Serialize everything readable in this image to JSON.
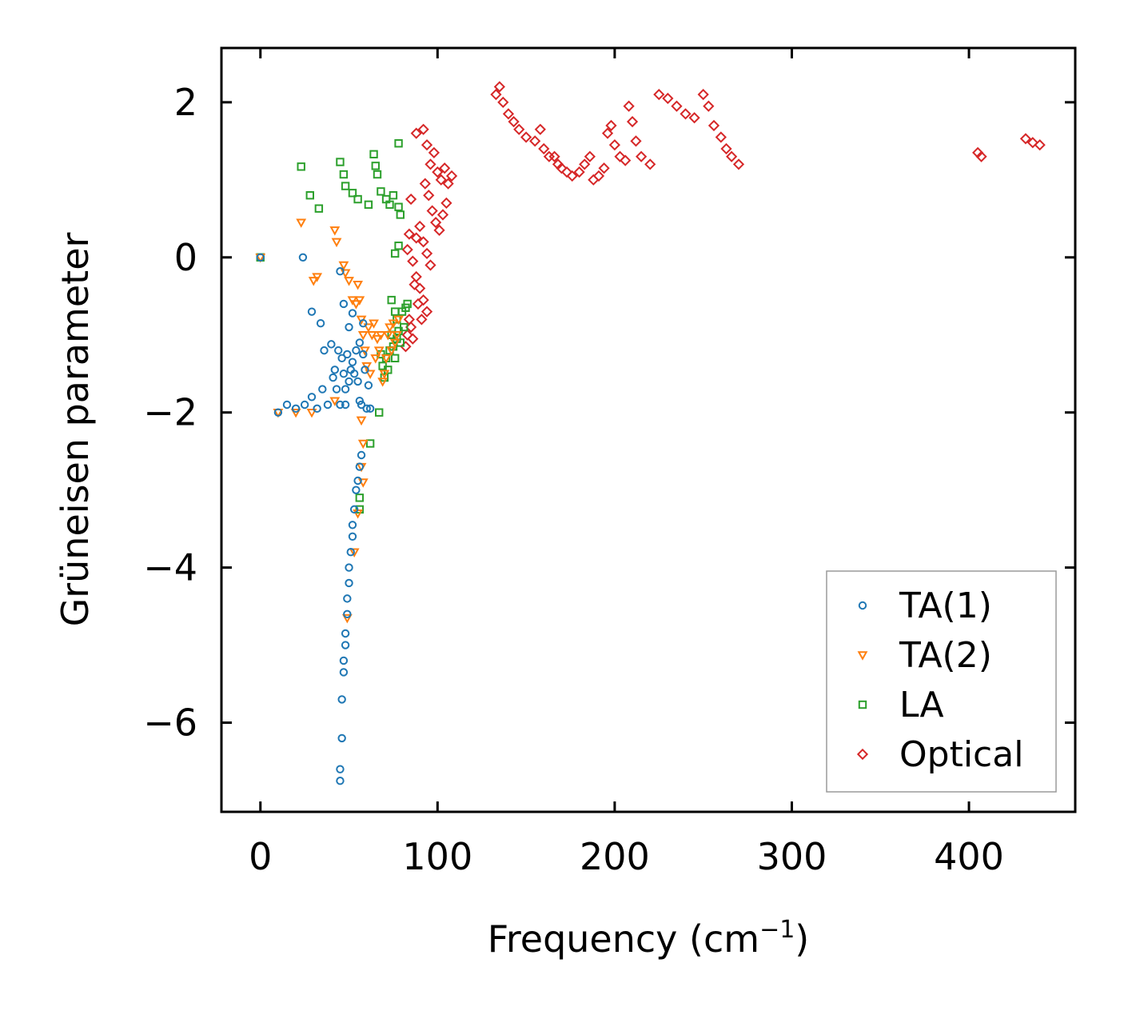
{
  "chart_data": {
    "type": "scatter",
    "title": "",
    "xlabel": "Frequency (cm",
    "xlabel_superscript": "−1",
    "xlabel_suffix": ")",
    "ylabel": "Grüneisen parameter",
    "xlim": [
      -22,
      460
    ],
    "ylim": [
      -7.15,
      2.7
    ],
    "xticks": [
      0,
      100,
      200,
      300,
      400
    ],
    "xtick_labels": [
      "0",
      "100",
      "200",
      "300",
      "400"
    ],
    "yticks": [
      2,
      0,
      -2,
      -4,
      -6
    ],
    "ytick_labels": [
      "2",
      "0",
      "−2",
      "−4",
      "−6"
    ],
    "legend_position": "lower-right",
    "series": [
      {
        "name": "TA(1)",
        "marker": "circle",
        "color": "#1f77b4",
        "points": [
          [
            0,
            0
          ],
          [
            24,
            0
          ],
          [
            45,
            -0.18
          ],
          [
            10,
            -2.0
          ],
          [
            15,
            -1.9
          ],
          [
            20,
            -1.95
          ],
          [
            25,
            -1.9
          ],
          [
            29,
            -1.8
          ],
          [
            32,
            -1.95
          ],
          [
            35,
            -1.7
          ],
          [
            36,
            -1.2
          ],
          [
            38,
            -1.9
          ],
          [
            40,
            -1.12
          ],
          [
            41,
            -1.55
          ],
          [
            42,
            -1.45
          ],
          [
            43,
            -1.7
          ],
          [
            44,
            -1.2
          ],
          [
            45,
            -1.9
          ],
          [
            46,
            -1.3
          ],
          [
            47,
            -1.5
          ],
          [
            47,
            -0.6
          ],
          [
            48,
            -1.7
          ],
          [
            48,
            -1.9
          ],
          [
            49,
            -1.25
          ],
          [
            50,
            -1.6
          ],
          [
            50,
            -0.9
          ],
          [
            51,
            -1.45
          ],
          [
            52,
            -0.72
          ],
          [
            52,
            -1.35
          ],
          [
            53,
            -1.5
          ],
          [
            54,
            -1.2
          ],
          [
            55,
            -1.6
          ],
          [
            56,
            -1.1
          ],
          [
            56,
            -1.85
          ],
          [
            57,
            -1.9
          ],
          [
            58,
            -1.25
          ],
          [
            58,
            -0.85
          ],
          [
            59,
            -1.45
          ],
          [
            60,
            -1.95
          ],
          [
            61,
            -1.65
          ],
          [
            62,
            -1.95
          ],
          [
            29,
            -0.7
          ],
          [
            34,
            -0.85
          ],
          [
            57,
            -2.55
          ],
          [
            56,
            -2.7
          ],
          [
            55,
            -2.88
          ],
          [
            54,
            -3.0
          ],
          [
            53,
            -3.25
          ],
          [
            52,
            -3.45
          ],
          [
            52,
            -3.6
          ],
          [
            51,
            -3.8
          ],
          [
            50,
            -4.0
          ],
          [
            50,
            -4.2
          ],
          [
            49,
            -4.4
          ],
          [
            49,
            -4.6
          ],
          [
            48,
            -4.85
          ],
          [
            48,
            -5.0
          ],
          [
            47,
            -5.2
          ],
          [
            47,
            -5.35
          ],
          [
            46,
            -5.7
          ],
          [
            46,
            -6.2
          ],
          [
            45,
            -6.6
          ],
          [
            45,
            -6.75
          ]
        ]
      },
      {
        "name": "TA(2)",
        "marker": "triangle-down",
        "color": "#ff7f0e",
        "points": [
          [
            0,
            0
          ],
          [
            10,
            -2.0
          ],
          [
            20,
            -2.0
          ],
          [
            23,
            0.45
          ],
          [
            29,
            -2.0
          ],
          [
            30,
            -0.3
          ],
          [
            32,
            -0.25
          ],
          [
            42,
            -1.85
          ],
          [
            42,
            0.35
          ],
          [
            43,
            0.2
          ],
          [
            47,
            -0.1
          ],
          [
            48,
            -0.2
          ],
          [
            50,
            -0.3
          ],
          [
            52,
            -0.55
          ],
          [
            54,
            -0.6
          ],
          [
            55,
            -0.35
          ],
          [
            56,
            -0.55
          ],
          [
            57,
            -0.8
          ],
          [
            58,
            -1.0
          ],
          [
            59,
            -1.2
          ],
          [
            60,
            -1.4
          ],
          [
            61,
            -0.9
          ],
          [
            62,
            -1.5
          ],
          [
            63,
            -1.0
          ],
          [
            64,
            -0.85
          ],
          [
            65,
            -1.3
          ],
          [
            66,
            -1.05
          ],
          [
            67,
            -1.2
          ],
          [
            68,
            -1.0
          ],
          [
            69,
            -1.6
          ],
          [
            70,
            -1.5
          ],
          [
            71,
            -1.3
          ],
          [
            72,
            -1.0
          ],
          [
            73,
            -0.9
          ],
          [
            74,
            -1.2
          ],
          [
            75,
            -0.85
          ],
          [
            76,
            -1.1
          ],
          [
            77,
            -1.0
          ],
          [
            78,
            -0.8
          ],
          [
            57,
            -2.1
          ],
          [
            58,
            -2.4
          ],
          [
            57,
            -2.7
          ],
          [
            58,
            -2.9
          ],
          [
            55,
            -3.3
          ],
          [
            53,
            -3.8
          ],
          [
            49,
            -4.65
          ]
        ]
      },
      {
        "name": "LA",
        "marker": "square",
        "color": "#2ca02c",
        "points": [
          [
            0,
            0
          ],
          [
            23,
            1.17
          ],
          [
            28,
            0.8
          ],
          [
            33,
            0.63
          ],
          [
            45,
            1.23
          ],
          [
            47,
            1.07
          ],
          [
            48,
            0.92
          ],
          [
            52,
            0.83
          ],
          [
            55,
            0.75
          ],
          [
            61,
            0.68
          ],
          [
            64,
            1.33
          ],
          [
            65,
            1.18
          ],
          [
            66,
            1.07
          ],
          [
            68,
            0.85
          ],
          [
            71,
            0.75
          ],
          [
            73,
            0.68
          ],
          [
            75,
            0.8
          ],
          [
            78,
            0.65
          ],
          [
            79,
            0.55
          ],
          [
            78,
            1.47
          ],
          [
            76,
            0.05
          ],
          [
            78,
            0.15
          ],
          [
            74,
            -0.55
          ],
          [
            76,
            -0.7
          ],
          [
            77,
            -0.8
          ],
          [
            78,
            -0.95
          ],
          [
            79,
            -1.1
          ],
          [
            80,
            -0.7
          ],
          [
            81,
            -0.9
          ],
          [
            82,
            -0.65
          ],
          [
            83,
            -0.6
          ],
          [
            71,
            -1.3
          ],
          [
            72,
            -1.45
          ],
          [
            73,
            -1.2
          ],
          [
            74,
            -1.0
          ],
          [
            75,
            -1.15
          ],
          [
            76,
            -1.3
          ],
          [
            77,
            -1.05
          ],
          [
            69,
            -1.4
          ],
          [
            70,
            -1.55
          ],
          [
            68,
            -1.25
          ],
          [
            62,
            -2.4
          ],
          [
            67,
            -2.0
          ],
          [
            56,
            -3.1
          ],
          [
            56,
            -3.25
          ]
        ]
      },
      {
        "name": "Optical",
        "marker": "diamond",
        "color": "#d62728",
        "points": [
          [
            88,
            1.6
          ],
          [
            92,
            1.65
          ],
          [
            94,
            1.45
          ],
          [
            96,
            1.2
          ],
          [
            98,
            1.35
          ],
          [
            100,
            1.1
          ],
          [
            102,
            1.0
          ],
          [
            104,
            1.15
          ],
          [
            106,
            0.95
          ],
          [
            108,
            1.05
          ],
          [
            93,
            0.95
          ],
          [
            95,
            0.8
          ],
          [
            97,
            0.6
          ],
          [
            99,
            0.45
          ],
          [
            101,
            0.35
          ],
          [
            103,
            0.55
          ],
          [
            105,
            0.7
          ],
          [
            90,
            0.4
          ],
          [
            92,
            0.2
          ],
          [
            94,
            0.05
          ],
          [
            96,
            -0.1
          ],
          [
            88,
            0.25
          ],
          [
            85,
            0.75
          ],
          [
            84,
            0.3
          ],
          [
            83,
            0.1
          ],
          [
            86,
            -0.05
          ],
          [
            88,
            -0.25
          ],
          [
            90,
            -0.4
          ],
          [
            92,
            -0.55
          ],
          [
            94,
            -0.7
          ],
          [
            87,
            -0.35
          ],
          [
            89,
            -0.6
          ],
          [
            91,
            -0.8
          ],
          [
            85,
            -0.9
          ],
          [
            83,
            -1.0
          ],
          [
            86,
            -1.05
          ],
          [
            82,
            -1.15
          ],
          [
            84,
            -0.8
          ],
          [
            133,
            2.1
          ],
          [
            135,
            2.2
          ],
          [
            137,
            2.0
          ],
          [
            140,
            1.85
          ],
          [
            143,
            1.75
          ],
          [
            146,
            1.65
          ],
          [
            150,
            1.55
          ],
          [
            155,
            1.5
          ],
          [
            158,
            1.65
          ],
          [
            160,
            1.4
          ],
          [
            163,
            1.3
          ],
          [
            166,
            1.3
          ],
          [
            168,
            1.2
          ],
          [
            170,
            1.15
          ],
          [
            173,
            1.1
          ],
          [
            176,
            1.05
          ],
          [
            180,
            1.1
          ],
          [
            183,
            1.2
          ],
          [
            186,
            1.3
          ],
          [
            188,
            1.0
          ],
          [
            191,
            1.05
          ],
          [
            194,
            1.15
          ],
          [
            196,
            1.6
          ],
          [
            198,
            1.7
          ],
          [
            200,
            1.45
          ],
          [
            203,
            1.3
          ],
          [
            206,
            1.25
          ],
          [
            208,
            1.95
          ],
          [
            210,
            1.75
          ],
          [
            212,
            1.5
          ],
          [
            215,
            1.3
          ],
          [
            220,
            1.2
          ],
          [
            225,
            2.1
          ],
          [
            230,
            2.05
          ],
          [
            235,
            1.95
          ],
          [
            240,
            1.85
          ],
          [
            245,
            1.8
          ],
          [
            250,
            2.1
          ],
          [
            253,
            1.95
          ],
          [
            256,
            1.7
          ],
          [
            260,
            1.55
          ],
          [
            263,
            1.4
          ],
          [
            266,
            1.3
          ],
          [
            270,
            1.2
          ],
          [
            405,
            1.35
          ],
          [
            407,
            1.3
          ],
          [
            432,
            1.53
          ],
          [
            436,
            1.48
          ],
          [
            440,
            1.45
          ]
        ]
      }
    ]
  }
}
